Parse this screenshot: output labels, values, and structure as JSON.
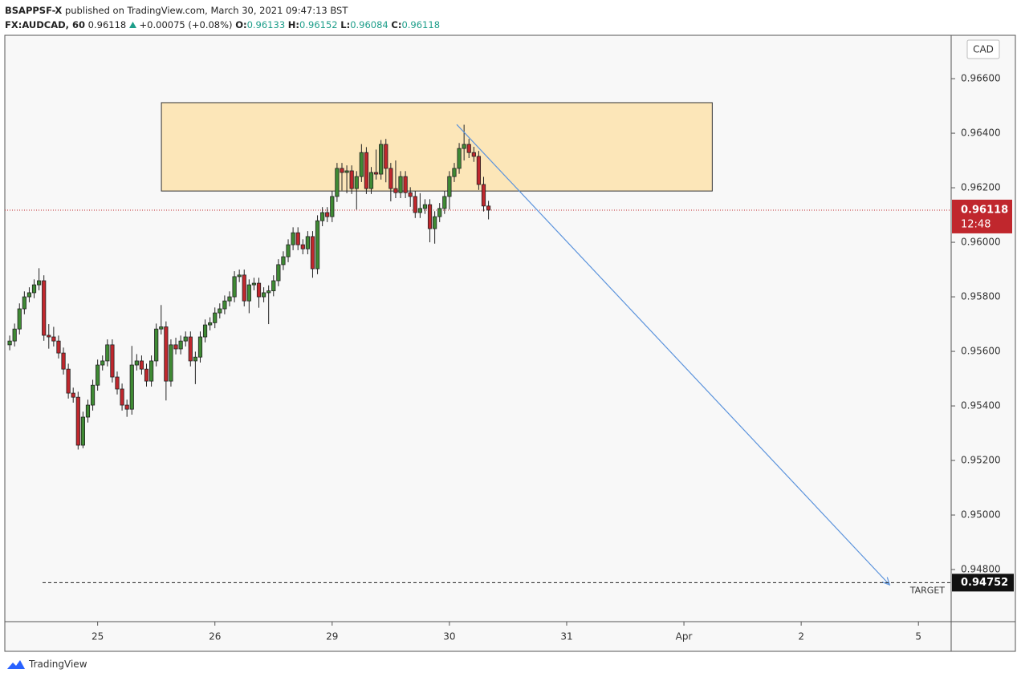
{
  "header": {
    "author": "BSAPPSF-X",
    "published": "published on TradingView.com, March 30, 2021 09:47:13 BST",
    "symbol": "FX:AUDCAD, 60",
    "change": "+0.00075 (+0.08%)",
    "open_label": "O:",
    "high_label": "H:",
    "low_label": "L:",
    "close_label": "C:"
  },
  "chart_data": {
    "type": "candlestick",
    "currency": "CAD",
    "up_color": "#3f8a34",
    "down_color": "#c0272d",
    "open": [
      0.95624,
      0.95638,
      0.95682,
      0.95756,
      0.958,
      0.95815,
      0.95844,
      0.95859,
      0.95659,
      0.95653,
      0.95638,
      0.95594,
      0.95535,
      0.95447,
      0.95432,
      0.95256,
      0.95359,
      0.95403,
      0.95476,
      0.9555,
      0.95565,
      0.95624,
      0.95506,
      0.95462,
      0.95403,
      0.95388,
      0.9555,
      0.95565,
      0.95535,
      0.95491,
      0.95565,
      0.95682,
      0.9569,
      0.95491,
      0.95624,
      0.95609,
      0.95638,
      0.95653,
      0.95565,
      0.95579,
      0.95653,
      0.95697,
      0.95705,
      0.95741,
      0.95756,
      0.95785,
      0.958,
      0.95874,
      0.9588,
      0.95785,
      0.95844,
      0.9585,
      0.958,
      0.95815,
      0.95822,
      0.95859,
      0.95918,
      0.95947,
      0.95991,
      0.96035,
      0.95991,
      0.95976,
      0.96021,
      0.95903,
      0.96079,
      0.96109,
      0.96094,
      0.96168,
      0.96271,
      0.96256,
      0.96262,
      0.96197,
      0.96241,
      0.96329,
      0.96197,
      0.96256,
      0.9625,
      0.96359,
      0.96271,
      0.96197,
      0.96182,
      0.96241,
      0.96182,
      0.96168,
      0.96109,
      0.96124,
      0.96138,
      0.9605,
      0.96094,
      0.96124,
      0.96168,
      0.96241,
      0.96271,
      0.96344,
      0.96359,
      0.96329,
      0.96315,
      0.96212,
      0.96133
    ],
    "high": [
      0.95658,
      0.95702,
      0.95776,
      0.9582,
      0.95835,
      0.95864,
      0.95905,
      0.95879,
      0.957,
      0.9569,
      0.95658,
      0.95614,
      0.95555,
      0.95467,
      0.95452,
      0.95379,
      0.95423,
      0.95496,
      0.9557,
      0.95585,
      0.95644,
      0.95644,
      0.95526,
      0.95482,
      0.95423,
      0.9562,
      0.9559,
      0.95585,
      0.95555,
      0.95585,
      0.95702,
      0.9577,
      0.9571,
      0.95644,
      0.9565,
      0.95658,
      0.95673,
      0.95673,
      0.95599,
      0.95673,
      0.95717,
      0.95725,
      0.95761,
      0.95776,
      0.95805,
      0.9582,
      0.95894,
      0.959,
      0.959,
      0.95864,
      0.9587,
      0.9587,
      0.95835,
      0.95842,
      0.95879,
      0.95938,
      0.95967,
      0.96011,
      0.96055,
      0.96055,
      0.96011,
      0.96041,
      0.96041,
      0.96099,
      0.96129,
      0.96129,
      0.96188,
      0.96291,
      0.96291,
      0.96282,
      0.96282,
      0.96261,
      0.9636,
      0.96349,
      0.96276,
      0.9634,
      0.96375,
      0.96379,
      0.96291,
      0.963,
      0.96261,
      0.96261,
      0.96202,
      0.96188,
      0.9618,
      0.96158,
      0.96158,
      0.96114,
      0.96144,
      0.96188,
      0.96261,
      0.96291,
      0.96364,
      0.96431,
      0.96379,
      0.9635,
      0.96335,
      0.9624,
      0.96152
    ],
    "low": [
      0.95604,
      0.95618,
      0.95662,
      0.95736,
      0.9578,
      0.95795,
      0.95824,
      0.95639,
      0.9561,
      0.95618,
      0.95574,
      0.95515,
      0.95427,
      0.95412,
      0.9524,
      0.95245,
      0.95339,
      0.95383,
      0.95456,
      0.9553,
      0.95545,
      0.95486,
      0.95442,
      0.95383,
      0.9536,
      0.95368,
      0.9553,
      0.95515,
      0.95471,
      0.95471,
      0.95545,
      0.95662,
      0.9542,
      0.95471,
      0.95589,
      0.95589,
      0.95618,
      0.95545,
      0.9548,
      0.95559,
      0.95633,
      0.95677,
      0.95685,
      0.95721,
      0.95736,
      0.95765,
      0.9578,
      0.95854,
      0.95765,
      0.9574,
      0.95824,
      0.9576,
      0.9578,
      0.957,
      0.95802,
      0.95839,
      0.95898,
      0.95927,
      0.95971,
      0.95971,
      0.95956,
      0.95956,
      0.9587,
      0.95883,
      0.96059,
      0.96074,
      0.96074,
      0.96148,
      0.9619,
      0.9618,
      0.96177,
      0.9612,
      0.96221,
      0.96177,
      0.96177,
      0.9623,
      0.9623,
      0.9622,
      0.9615,
      0.96162,
      0.96162,
      0.96162,
      0.9613,
      0.96089,
      0.96089,
      0.96104,
      0.96,
      0.95995,
      0.96074,
      0.96104,
      0.9612,
      0.96221,
      0.96251,
      0.963,
      0.96309,
      0.96295,
      0.96192,
      0.96113,
      0.96084
    ],
    "close": [
      0.95638,
      0.95682,
      0.95756,
      0.958,
      0.95815,
      0.95844,
      0.95859,
      0.95659,
      0.95653,
      0.95638,
      0.95594,
      0.95535,
      0.95447,
      0.95432,
      0.95256,
      0.95359,
      0.95403,
      0.95476,
      0.9555,
      0.95565,
      0.95624,
      0.95506,
      0.95462,
      0.95403,
      0.95388,
      0.9555,
      0.95565,
      0.95535,
      0.95491,
      0.95565,
      0.95682,
      0.9569,
      0.95491,
      0.95624,
      0.95609,
      0.95638,
      0.95653,
      0.95565,
      0.95579,
      0.95653,
      0.95697,
      0.95705,
      0.95741,
      0.95756,
      0.95785,
      0.958,
      0.95874,
      0.9588,
      0.95785,
      0.95844,
      0.9585,
      0.958,
      0.95815,
      0.95822,
      0.95859,
      0.95918,
      0.95947,
      0.95991,
      0.96035,
      0.95991,
      0.95976,
      0.96021,
      0.95903,
      0.96079,
      0.96109,
      0.96094,
      0.96168,
      0.96271,
      0.96256,
      0.96262,
      0.96197,
      0.96241,
      0.96329,
      0.96197,
      0.96256,
      0.9625,
      0.96359,
      0.96271,
      0.96197,
      0.96182,
      0.96241,
      0.96182,
      0.96168,
      0.96109,
      0.96124,
      0.96138,
      0.9605,
      0.96094,
      0.96124,
      0.96168,
      0.96241,
      0.96271,
      0.96344,
      0.96359,
      0.96329,
      0.96315,
      0.96212,
      0.96133,
      0.96118
    ],
    "countdown": "12:48",
    "xlim": [
      -1,
      192.7
    ],
    "xticks": [
      {
        "value": 18,
        "label": "25"
      },
      {
        "value": 42,
        "label": "26"
      },
      {
        "value": 66,
        "label": "29"
      },
      {
        "value": 90,
        "label": "30"
      },
      {
        "value": 114,
        "label": "31"
      },
      {
        "value": 138,
        "label": "Apr"
      },
      {
        "value": 162,
        "label": "2"
      },
      {
        "value": 186,
        "label": "5"
      }
    ],
    "ylim": [
      0.94609,
      0.96759
    ],
    "yticks": [
      {
        "value": 0.948,
        "label": "0.94800"
      },
      {
        "value": 0.95,
        "label": "0.95000"
      },
      {
        "value": 0.952,
        "label": "0.95200"
      },
      {
        "value": 0.954,
        "label": "0.95400"
      },
      {
        "value": 0.956,
        "label": "0.95600"
      },
      {
        "value": 0.958,
        "label": "0.95800"
      },
      {
        "value": 0.96,
        "label": "0.96000"
      },
      {
        "value": 0.962,
        "label": "0.96200"
      },
      {
        "value": 0.964,
        "label": "0.96400"
      },
      {
        "value": 0.966,
        "label": "0.96600"
      }
    ],
    "grid": false,
    "zone": {
      "x": [
        31.05,
        143.8
      ],
      "y": [
        0.96188,
        0.96512
      ],
      "color": "#fce6b8"
    },
    "trendline": {
      "x": [
        91.5,
        180.1
      ],
      "y": [
        0.96432,
        0.94744
      ],
      "color": "#5b93dc"
    },
    "target": {
      "value": 0.94752,
      "label": "TARGET"
    }
  },
  "footer": {
    "brand": "TradingView"
  }
}
